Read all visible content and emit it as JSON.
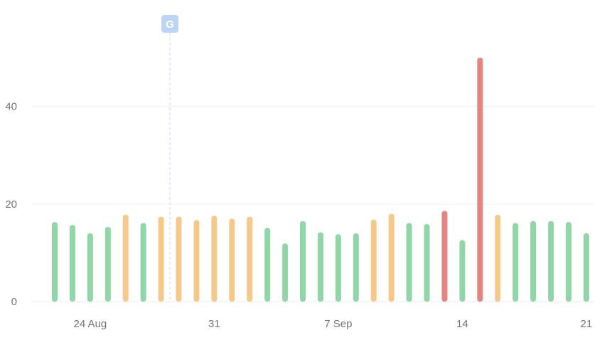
{
  "chart_data": {
    "type": "bar",
    "title": "",
    "xlabel": "",
    "ylabel": "",
    "ylim": [
      0,
      56
    ],
    "yticks": [
      0,
      20,
      40
    ],
    "xticks": [
      {
        "date": "2023-08-24",
        "label": "24 Aug"
      },
      {
        "date": "2023-08-31",
        "label": "31"
      },
      {
        "date": "2023-09-07",
        "label": "7 Sep"
      },
      {
        "date": "2023-09-14",
        "label": "14"
      },
      {
        "date": "2023-09-21",
        "label": "21"
      }
    ],
    "grid": true,
    "colors": {
      "good": "#90d6a6",
      "warn": "#f6c98a",
      "bad": "#e48581"
    },
    "bars": [
      {
        "date": "2023-08-22",
        "value": 16.3,
        "status": "good"
      },
      {
        "date": "2023-08-23",
        "value": 15.7,
        "status": "good"
      },
      {
        "date": "2023-08-24",
        "value": 14.0,
        "status": "good"
      },
      {
        "date": "2023-08-25",
        "value": 15.3,
        "status": "good"
      },
      {
        "date": "2023-08-26",
        "value": 17.8,
        "status": "warn"
      },
      {
        "date": "2023-08-27",
        "value": 16.1,
        "status": "good"
      },
      {
        "date": "2023-08-28",
        "value": 17.4,
        "status": "warn"
      },
      {
        "date": "2023-08-29",
        "value": 17.4,
        "status": "warn"
      },
      {
        "date": "2023-08-30",
        "value": 16.7,
        "status": "warn"
      },
      {
        "date": "2023-08-31",
        "value": 17.6,
        "status": "warn"
      },
      {
        "date": "2023-09-01",
        "value": 17.0,
        "status": "warn"
      },
      {
        "date": "2023-09-02",
        "value": 17.4,
        "status": "warn"
      },
      {
        "date": "2023-09-03",
        "value": 15.1,
        "status": "good"
      },
      {
        "date": "2023-09-04",
        "value": 11.9,
        "status": "good"
      },
      {
        "date": "2023-09-05",
        "value": 16.5,
        "status": "good"
      },
      {
        "date": "2023-09-06",
        "value": 14.2,
        "status": "good"
      },
      {
        "date": "2023-09-07",
        "value": 13.8,
        "status": "good"
      },
      {
        "date": "2023-09-08",
        "value": 14.0,
        "status": "good"
      },
      {
        "date": "2023-09-09",
        "value": 16.8,
        "status": "warn"
      },
      {
        "date": "2023-09-10",
        "value": 18.0,
        "status": "warn"
      },
      {
        "date": "2023-09-11",
        "value": 16.1,
        "status": "good"
      },
      {
        "date": "2023-09-12",
        "value": 15.9,
        "status": "good"
      },
      {
        "date": "2023-09-13",
        "value": 18.6,
        "status": "bad"
      },
      {
        "date": "2023-09-14",
        "value": 12.6,
        "status": "good"
      },
      {
        "date": "2023-09-15",
        "value": 50.0,
        "status": "bad"
      },
      {
        "date": "2023-09-16",
        "value": 17.8,
        "status": "warn"
      },
      {
        "date": "2023-09-17",
        "value": 16.1,
        "status": "good"
      },
      {
        "date": "2023-09-18",
        "value": 16.5,
        "status": "good"
      },
      {
        "date": "2023-09-19",
        "value": 16.5,
        "status": "good"
      },
      {
        "date": "2023-09-20",
        "value": 16.3,
        "status": "good"
      },
      {
        "date": "2023-09-21",
        "value": 14.0,
        "status": "good"
      }
    ],
    "annotations": [
      {
        "date": "2023-08-28",
        "offset_days": 0.5,
        "label": "G",
        "color": "#bcd4f6"
      }
    ]
  }
}
